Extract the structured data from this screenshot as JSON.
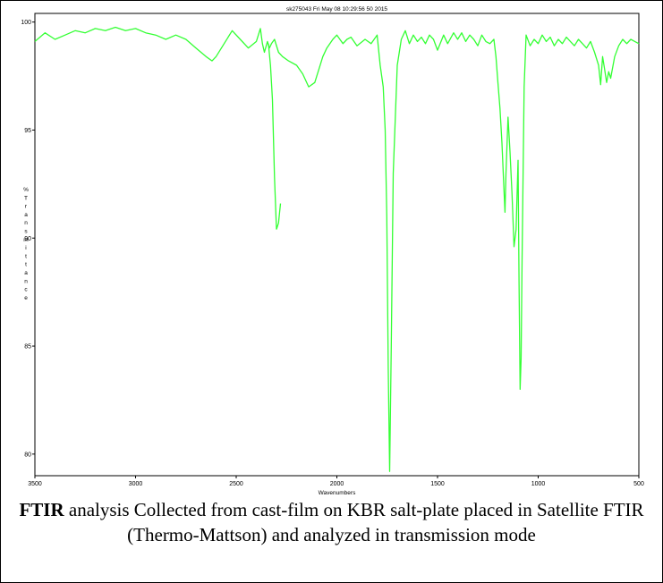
{
  "chart_data": {
    "type": "line",
    "title": "sk275043 Fri May 08 10:29:56 50 2015",
    "xlabel": "Wavenumbers",
    "ylabel": "% Transmittance",
    "xlim": [
      3500,
      500
    ],
    "ylim": [
      89.5,
      100.2
    ],
    "x_ticks": [
      3500,
      3000,
      2500,
      2000,
      1500,
      1000,
      500
    ],
    "y_ticks": [
      {
        "value": 100,
        "label": "100"
      },
      {
        "value": 97.5,
        "label": "95"
      },
      {
        "value": 95,
        "label": "90"
      },
      {
        "value": 92.5,
        "label": "85"
      },
      {
        "value": 90,
        "label": "80"
      }
    ],
    "grid": false,
    "line_color": "#33ff33",
    "series": [
      {
        "x": [
          3500,
          3450,
          3400,
          3350,
          3300,
          3250,
          3200,
          3150,
          3100,
          3050,
          3000,
          2950,
          2900,
          2850,
          2800,
          2750,
          2700,
          2650,
          2620,
          2600,
          2560,
          2520,
          2480,
          2440,
          2400,
          2380,
          2370,
          2360,
          2345,
          2335,
          2325,
          2310,
          2290,
          2270,
          2240,
          2200,
          2170,
          2140,
          2110,
          2090,
          2070,
          2050,
          2020,
          2000,
          1970,
          1950,
          1930,
          1900,
          1860,
          1830,
          1800,
          1785,
          1770,
          1760,
          1752,
          1745,
          1738,
          1730,
          1720,
          1700,
          1680,
          1660,
          1640,
          1620,
          1600,
          1580,
          1560,
          1540,
          1520,
          1500,
          1470,
          1450,
          1420,
          1400,
          1380,
          1360,
          1340,
          1320,
          1300,
          1280,
          1260,
          1240,
          1220,
          1210,
          1200,
          1190,
          1180,
          1170,
          1165,
          1160,
          1150,
          1140,
          1130,
          1120,
          1110,
          1100,
          1095,
          1090,
          1085,
          1080,
          1070,
          1060,
          1040,
          1020,
          1000,
          980,
          960,
          940,
          920,
          900,
          880,
          860,
          840,
          820,
          800,
          780,
          760,
          740,
          720,
          700,
          690,
          680,
          670,
          660,
          650,
          640,
          620,
          600,
          580,
          560,
          540,
          520,
          500
        ],
        "y": [
          99.55,
          99.75,
          99.6,
          99.7,
          99.8,
          99.75,
          99.85,
          99.8,
          99.88,
          99.8,
          99.85,
          99.75,
          99.7,
          99.6,
          99.7,
          99.6,
          99.4,
          99.2,
          99.1,
          99.2,
          99.5,
          99.8,
          99.6,
          99.4,
          99.55,
          99.85,
          99.5,
          99.3,
          99.55,
          99.4,
          99.5,
          99.6,
          99.3,
          99.2,
          99.1,
          99.0,
          98.8,
          98.5,
          98.6,
          98.9,
          99.2,
          99.4,
          99.6,
          99.7,
          99.5,
          99.6,
          99.65,
          99.45,
          99.6,
          99.5,
          99.7,
          99.0,
          98.5,
          97.5,
          95.5,
          92.0,
          89.6,
          92.5,
          96.5,
          99.0,
          99.6,
          99.8,
          99.5,
          99.7,
          99.55,
          99.65,
          99.5,
          99.7,
          99.6,
          99.35,
          99.7,
          99.5,
          99.75,
          99.6,
          99.75,
          99.55,
          99.7,
          99.6,
          99.45,
          99.7,
          99.55,
          99.5,
          99.6,
          99.2,
          98.6,
          98.0,
          97.2,
          96.1,
          95.6,
          96.5,
          97.8,
          97.0,
          96.0,
          94.8,
          95.2,
          96.8,
          94.0,
          91.5,
          92.2,
          94.5,
          98.5,
          99.7,
          99.45,
          99.6,
          99.5,
          99.7,
          99.55,
          99.65,
          99.45,
          99.6,
          99.5,
          99.65,
          99.55,
          99.45,
          99.6,
          99.5,
          99.4,
          99.55,
          99.3,
          99.0,
          98.55,
          99.2,
          98.9,
          98.6,
          98.85,
          98.7,
          99.2,
          99.45,
          99.6,
          99.5,
          99.6,
          99.55,
          99.5
        ]
      }
    ],
    "partial_peak": {
      "x": [
        2340,
        2330,
        2320,
        2310,
        2300,
        2290,
        2280
      ],
      "y": [
        99.5,
        99.0,
        98.2,
        96.4,
        95.2,
        95.35,
        95.8
      ]
    }
  },
  "caption": {
    "bold": "FTIR",
    "text": " analysis Collected from cast-film on KBR salt-plate placed in Satellite FTIR (Thermo-Mattson) and analyzed in transmission mode"
  }
}
